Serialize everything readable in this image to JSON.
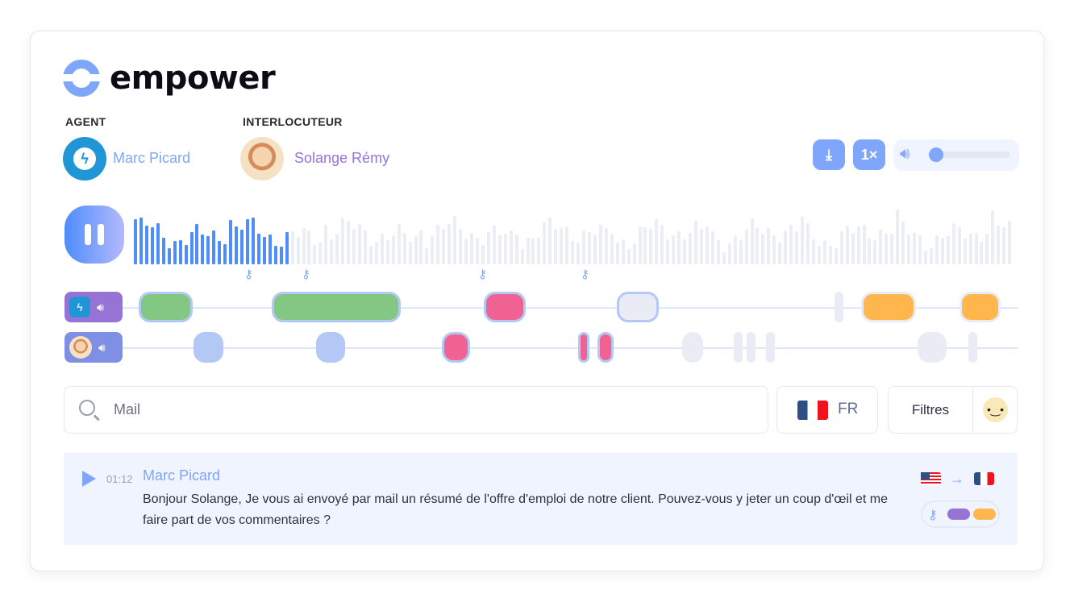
{
  "brand": {
    "name": "empower",
    "color": "#7fa6fb"
  },
  "agent": {
    "label": "AGENT",
    "name": "Marc Picard",
    "name_color": "#7fa6fb",
    "icon": "lightning-icon"
  },
  "interlocutor": {
    "label": "INTERLOCUTEUR",
    "name": "Solange Rémy",
    "name_color": "#9673d5"
  },
  "controls": {
    "download_icon": "download-icon",
    "speed": "1×",
    "volume_icon": "speaker-icon",
    "volume_level": 0
  },
  "player": {
    "state": "playing",
    "pause_icon": "pause-icon",
    "progress": 0.177,
    "played_color": "#4f8dfb",
    "unplayed_color": "#eceef6"
  },
  "markers": {
    "icon": "key-icon",
    "color": "#7fa6fb"
  },
  "colors": {
    "positive": "#82c782",
    "negative": "#f06292",
    "neutral": "#b3c8f5",
    "inactive": "#e9ecf4",
    "warning": "#ffb74d"
  },
  "search": {
    "placeholder": "Mail",
    "icon": "search-icon"
  },
  "language": {
    "code": "FR",
    "flag": "flag-fr-icon"
  },
  "filters": {
    "label": "Filtres",
    "emoji": "smiley-icon"
  },
  "transcript": [
    {
      "time": "01:12",
      "speaker": "Marc Picard",
      "text": "Bonjour Solange, Je vous ai envoyé par mail un résumé de l'offre d'emploi de notre client. Pouvez-vous y jeter un coup d'œil et me faire part de vos commentaires ?",
      "translation": {
        "from": "flag-us-icon",
        "to": "flag-fr-icon"
      },
      "tags": [
        "key-icon",
        "purple",
        "orange"
      ]
    }
  ]
}
